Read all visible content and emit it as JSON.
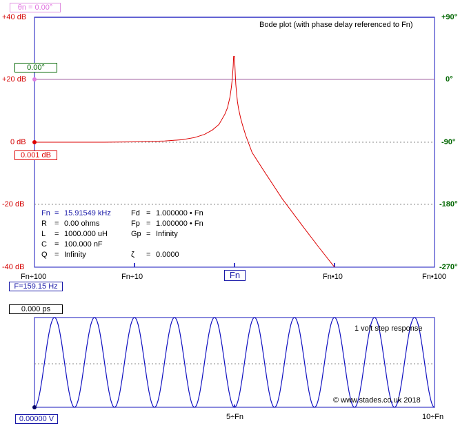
{
  "bode": {
    "title": "Bode plot (with phase delay referenced to Fn)",
    "phase_ref_box": "θn = 0.00°",
    "phase_readout_box": "0.00°",
    "gain_readout_box": "0.001 dB",
    "freq_readout_box": "F=159.15 Hz",
    "fn_marker_box": "Fn",
    "db_labels": [
      "+40 dB",
      "+20 dB",
      "0 dB",
      "-20 dB",
      "-40 dB"
    ],
    "phase_labels": [
      "+90°",
      "0°",
      "-90°",
      "-180°",
      "-270°"
    ],
    "x_labels": [
      "Fn÷100",
      "Fn÷10",
      "Fn•10",
      "Fn•100"
    ]
  },
  "params": {
    "fn_label": "Fn",
    "fn_value": "15.91549 kHz",
    "r_label": "R",
    "r_value": "0.00 ohms",
    "l_label": "L",
    "l_value": "1000.000 uH",
    "c_label": "C",
    "c_value": "100.000 nF",
    "q_label": "Q",
    "q_value": "Infinity",
    "fd_label": "Fd",
    "fd_value": "1.000000 • Fn",
    "fp_label": "Fp",
    "fp_value": "1.000000 • Fn",
    "gp_label": "Gp",
    "gp_value": "Infinity",
    "zeta_label": "ζ",
    "zeta_value": "0.0000",
    "eq": "="
  },
  "step": {
    "title": "1 volt step response",
    "time_box": "0.000 ps",
    "volt_box": "0.00000 V",
    "copyright": "© www.stades.co.uk 2018",
    "x_labels": [
      "5÷Fn",
      "10÷Fn"
    ]
  },
  "colors": {
    "frame": "#3c3cc8",
    "gain": "#dd0000",
    "phase": "#a060a0",
    "wave": "#1010c0",
    "grid": "#999999"
  },
  "chart_data": [
    {
      "type": "line",
      "title": "Bode plot (with phase delay referenced to Fn)",
      "x_scale": "log",
      "x_unit": "multiple of Fn",
      "xlim": [
        0.01,
        100
      ],
      "ylim": [
        -40,
        40
      ],
      "y_unit": "dB",
      "y2lim": [
        -270,
        90
      ],
      "y2_unit": "degrees",
      "series": [
        {
          "kind": "gain",
          "x": [
            0.01,
            0.02,
            0.05,
            0.1,
            0.2,
            0.3,
            0.4,
            0.5,
            0.6,
            0.7,
            0.8,
            0.85,
            0.9,
            0.93,
            0.95,
            0.97,
            0.98,
            1.0,
            1.02,
            1.03,
            1.05,
            1.07,
            1.1,
            1.15,
            1.2,
            1.3,
            1.5,
            2,
            3,
            5,
            7,
            10
          ],
          "values": [
            0.0,
            0.0,
            0.0,
            0.1,
            0.4,
            0.8,
            1.5,
            2.5,
            3.9,
            5.7,
            8.9,
            11.0,
            14.4,
            17.5,
            20.3,
            24.4,
            27.5,
            27.5,
            21.4,
            18.5,
            15.5,
            12.9,
            10.6,
            7.8,
            5.6,
            2.0,
            -3.3,
            -9.5,
            -18.1,
            -27.6,
            -33.7,
            -40.0
          ]
        },
        {
          "kind": "phase",
          "x": [
            0.01,
            100
          ],
          "values": [
            0,
            0
          ]
        }
      ]
    },
    {
      "type": "line",
      "title": "1 volt step response",
      "x_unit": "1/Fn",
      "xlim": [
        0,
        10
      ],
      "ylim": [
        0,
        2
      ],
      "series": [
        {
          "kind": "step",
          "formula": "1 - cos(2*pi*t)",
          "x": [
            0,
            0.25,
            0.5,
            0.75,
            1,
            1.25,
            1.5,
            1.75,
            2,
            2.5,
            3,
            3.5,
            4,
            4.5,
            5,
            5.5,
            6,
            6.5,
            7,
            7.5,
            8,
            8.5,
            9,
            9.5,
            10
          ],
          "values": [
            0,
            1,
            2,
            1,
            0,
            1,
            2,
            1,
            0,
            2,
            0,
            2,
            0,
            2,
            0,
            2,
            0,
            2,
            0,
            2,
            0,
            2,
            0,
            2,
            0
          ]
        }
      ]
    }
  ]
}
